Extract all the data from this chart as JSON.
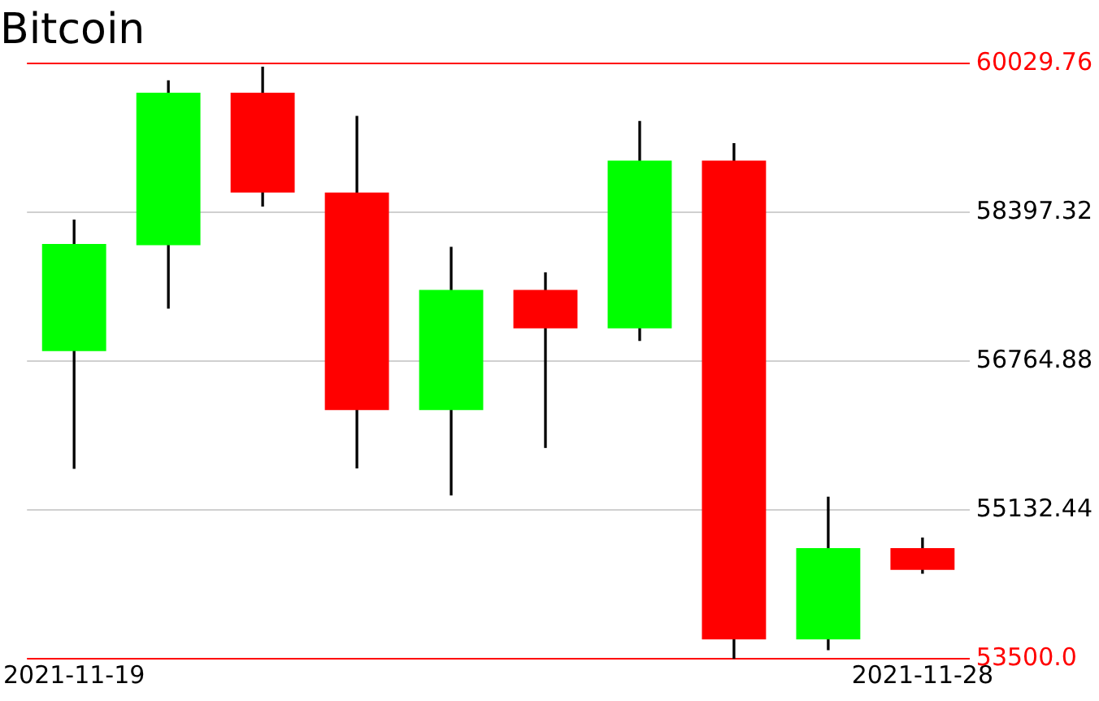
{
  "chart_data": {
    "type": "candlestick",
    "title": "Bitcoin",
    "categories": [
      "2021-11-19",
      null,
      null,
      null,
      null,
      null,
      null,
      null,
      null,
      "2021-11-28"
    ],
    "ohlc": [
      [
        56877,
        58313,
        55589,
        58052
      ],
      [
        58039,
        59843,
        57349,
        59712
      ],
      [
        59712,
        59992,
        58468,
        58617
      ],
      [
        58617,
        59451,
        55595,
        56229
      ],
      [
        56229,
        58015,
        55297,
        57548
      ],
      [
        57548,
        57735,
        55819,
        57125
      ],
      [
        57125,
        59395,
        56994,
        58966
      ],
      [
        58966,
        59153,
        53500,
        53711
      ],
      [
        53711,
        55272,
        53599,
        54713
      ],
      [
        54713,
        54825,
        54438,
        54476
      ]
    ],
    "colors": [
      "#00ff00",
      "#00ff00",
      "#ff0000",
      "#ff0000",
      "#00ff00",
      "#ff0000",
      "#00ff00",
      "#ff0000",
      "#00ff00",
      "#ff0000"
    ],
    "ylim": [
      53500,
      60029.76
    ],
    "yticks": [
      {
        "value": 53500,
        "label": "53500.0"
      },
      55132.44,
      56764.88,
      58397.32,
      60029.76
    ],
    "grid": "y"
  }
}
